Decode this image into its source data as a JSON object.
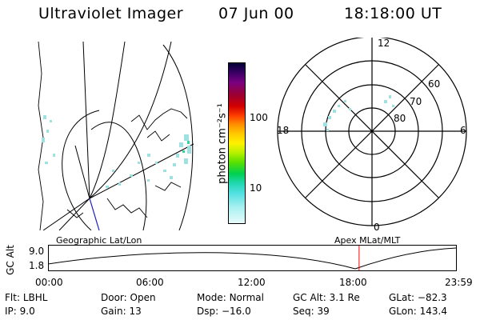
{
  "header": {
    "instrument": "Ultraviolet Imager",
    "date": "07 Jun 00",
    "time": "18:18:00 UT"
  },
  "geo_panel": {
    "label": "Geographic Lat/Lon"
  },
  "colorbar": {
    "unit_label": "photon cm⁻²s⁻¹",
    "ticks": [
      "100",
      "10"
    ],
    "colors": [
      "#000033",
      "#3a0066",
      "#7a0080",
      "#9b0030",
      "#d40000",
      "#ff4000",
      "#ff8c00",
      "#ffc800",
      "#fff200",
      "#b8f000",
      "#58e000",
      "#00d050",
      "#20d8b0",
      "#50e0e0",
      "#a8f0f0",
      "#e8fafa"
    ]
  },
  "polar_panel": {
    "label": "Apex MLat/MLT",
    "mlt_labels": {
      "top": "12",
      "left": "18",
      "right": "6",
      "bottom": "0"
    },
    "lat_labels": [
      "60",
      "70",
      "80"
    ]
  },
  "orbit_plot": {
    "ylabel": "GC Alt",
    "yticks": [
      "9.0",
      "1.8"
    ],
    "xticks": [
      "00:00",
      "06:00",
      "12:00",
      "18:00",
      "23:59"
    ],
    "marker_time_hours": 18.3,
    "marker_color": "#ff0000"
  },
  "status": {
    "row1": [
      {
        "label": "Flt:",
        "value": "LBHL"
      },
      {
        "label": "Door:",
        "value": "Open"
      },
      {
        "label": "Mode:",
        "value": "Normal"
      },
      {
        "label": "GC Alt:",
        "value": "3.1 Re"
      },
      {
        "label": "GLat:",
        "value": "−82.3"
      }
    ],
    "row2": [
      {
        "label": "IP:",
        "value": "9.0"
      },
      {
        "label": "Gain:",
        "value": "13"
      },
      {
        "label": "Dsp:",
        "value": "−16.0"
      },
      {
        "label": "Seq:",
        "value": "39"
      },
      {
        "label": "GLon:",
        "value": "143.4"
      }
    ]
  }
}
